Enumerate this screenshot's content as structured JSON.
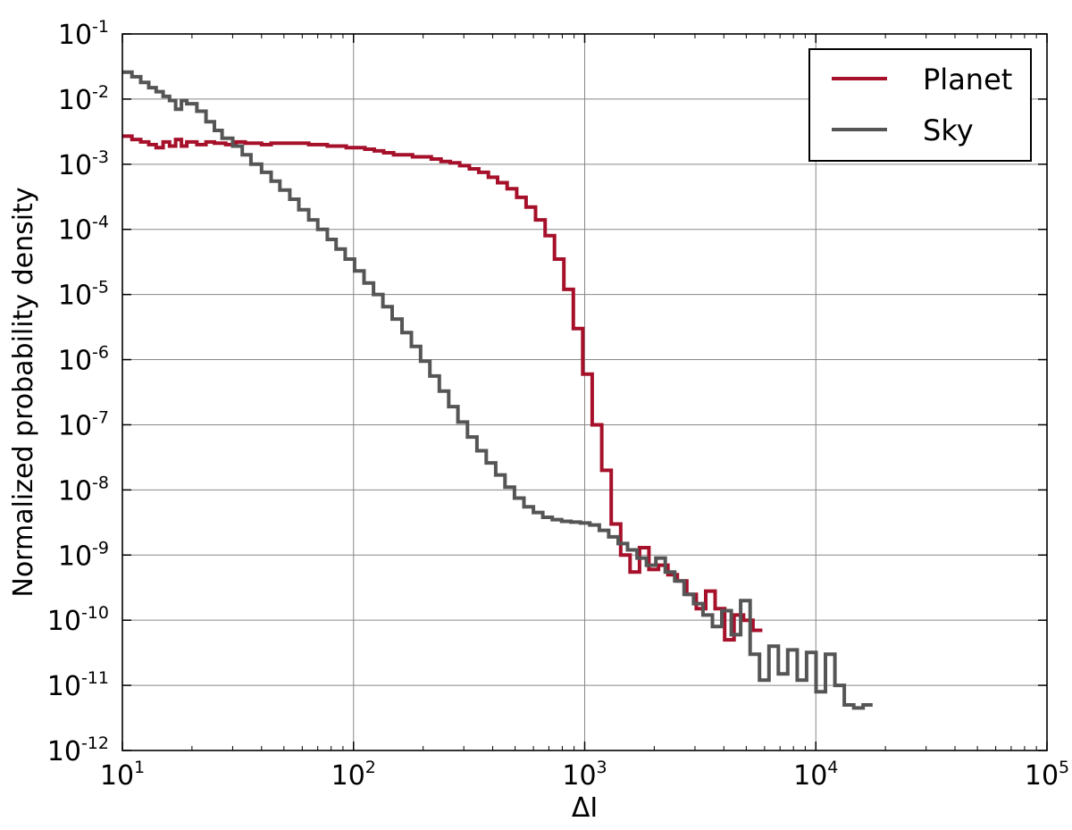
{
  "chart_data": {
    "type": "line",
    "drawstyle": "steps",
    "title": "",
    "xlabel": "ΔI",
    "ylabel": "Normalized probability density",
    "xscale": "log",
    "yscale": "log",
    "xlim": [
      10,
      100000
    ],
    "ylim": [
      1e-12,
      0.1
    ],
    "grid": true,
    "legend_position": "top-right",
    "x_tick_labels": [
      {
        "base": "10",
        "exp": "1"
      },
      {
        "base": "10",
        "exp": "2"
      },
      {
        "base": "10",
        "exp": "3"
      },
      {
        "base": "10",
        "exp": "4"
      },
      {
        "base": "10",
        "exp": "5"
      }
    ],
    "y_tick_labels": [
      {
        "base": "10",
        "exp": "-12"
      },
      {
        "base": "10",
        "exp": "-11"
      },
      {
        "base": "10",
        "exp": "-10"
      },
      {
        "base": "10",
        "exp": "-9"
      },
      {
        "base": "10",
        "exp": "-8"
      },
      {
        "base": "10",
        "exp": "-7"
      },
      {
        "base": "10",
        "exp": "-6"
      },
      {
        "base": "10",
        "exp": "-5"
      },
      {
        "base": "10",
        "exp": "-4"
      },
      {
        "base": "10",
        "exp": "-3"
      },
      {
        "base": "10",
        "exp": "-2"
      },
      {
        "base": "10",
        "exp": "-1"
      }
    ],
    "series": [
      {
        "name": "Planet",
        "color": "#a6102a",
        "points": [
          [
            10,
            0.0027
          ],
          [
            11,
            0.0024
          ],
          [
            12,
            0.0022
          ],
          [
            13,
            0.002
          ],
          [
            14,
            0.0018
          ],
          [
            15,
            0.0022
          ],
          [
            16,
            0.0019
          ],
          [
            17,
            0.0024
          ],
          [
            18,
            0.0019
          ],
          [
            19,
            0.0022
          ],
          [
            21,
            0.002
          ],
          [
            23,
            0.0022
          ],
          [
            25,
            0.0021
          ],
          [
            28,
            0.002
          ],
          [
            31,
            0.0022
          ],
          [
            34,
            0.0021
          ],
          [
            37,
            0.0021
          ],
          [
            40,
            0.002
          ],
          [
            44,
            0.0021
          ],
          [
            48,
            0.0021
          ],
          [
            53,
            0.0021
          ],
          [
            58,
            0.0021
          ],
          [
            64,
            0.002
          ],
          [
            70,
            0.002
          ],
          [
            77,
            0.0019
          ],
          [
            85,
            0.0019
          ],
          [
            93,
            0.0018
          ],
          [
            102,
            0.0018
          ],
          [
            112,
            0.0017
          ],
          [
            123,
            0.0016
          ],
          [
            135,
            0.0015
          ],
          [
            149,
            0.0014
          ],
          [
            163,
            0.0014
          ],
          [
            180,
            0.0013
          ],
          [
            198,
            0.0013
          ],
          [
            217,
            0.0012
          ],
          [
            239,
            0.0011
          ],
          [
            262,
            0.00105
          ],
          [
            288,
            0.00095
          ],
          [
            317,
            0.00085
          ],
          [
            348,
            0.00075
          ],
          [
            383,
            0.00063
          ],
          [
            420,
            0.00052
          ],
          [
            462,
            0.00042
          ],
          [
            508,
            0.00031
          ],
          [
            558,
            0.00022
          ],
          [
            613,
            0.00014
          ],
          [
            674,
            8e-05
          ],
          [
            740,
            3.5e-05
          ],
          [
            813,
            1.2e-05
          ],
          [
            893,
            3e-06
          ],
          [
            981,
            6e-07
          ],
          [
            1078,
            1e-07
          ],
          [
            1185,
            2e-08
          ],
          [
            1302,
            3e-09
          ],
          [
            1431,
            1e-09
          ],
          [
            1572,
            5.5e-10
          ],
          [
            1727,
            1.3e-09
          ],
          [
            1897,
            6e-10
          ],
          [
            2085,
            7e-10
          ],
          [
            2291,
            5e-10
          ],
          [
            2517,
            4e-10
          ],
          [
            2766,
            2.5e-10
          ],
          [
            3039,
            1.5e-10
          ],
          [
            3339,
            2.8e-10
          ],
          [
            3668,
            1.5e-10
          ],
          [
            4031,
            5e-11
          ],
          [
            4428,
            1.2e-10
          ],
          [
            4866,
            1e-10
          ],
          [
            5346,
            7e-11
          ]
        ]
      },
      {
        "name": "Sky",
        "color": "#555555",
        "points": [
          [
            10,
            0.026
          ],
          [
            11,
            0.022
          ],
          [
            12,
            0.018
          ],
          [
            13,
            0.015
          ],
          [
            14,
            0.013
          ],
          [
            15,
            0.011
          ],
          [
            16,
            0.0095
          ],
          [
            17,
            0.007
          ],
          [
            18,
            0.0095
          ],
          [
            19,
            0.0085
          ],
          [
            21,
            0.0065
          ],
          [
            23,
            0.0045
          ],
          [
            25,
            0.0033
          ],
          [
            27,
            0.0025
          ],
          [
            30,
            0.0019
          ],
          [
            33,
            0.0014
          ],
          [
            36,
            0.001
          ],
          [
            40,
            0.00075
          ],
          [
            44,
            0.00055
          ],
          [
            48,
            0.0004
          ],
          [
            53,
            0.00029
          ],
          [
            58,
            0.0002
          ],
          [
            64,
            0.00014
          ],
          [
            70,
            0.0001
          ],
          [
            77,
            7e-05
          ],
          [
            84,
            5e-05
          ],
          [
            92,
            3.5e-05
          ],
          [
            101,
            2.3e-05
          ],
          [
            111,
            1.5e-05
          ],
          [
            122,
            1e-05
          ],
          [
            134,
            6.5e-06
          ],
          [
            147,
            4.2e-06
          ],
          [
            162,
            2.6e-06
          ],
          [
            178,
            1.6e-06
          ],
          [
            195,
            9.5e-07
          ],
          [
            214,
            5.6e-07
          ],
          [
            235,
            3.3e-07
          ],
          [
            258,
            1.9e-07
          ],
          [
            283,
            1.1e-07
          ],
          [
            311,
            6.5e-08
          ],
          [
            342,
            4e-08
          ],
          [
            375,
            2.6e-08
          ],
          [
            412,
            1.7e-08
          ],
          [
            452,
            1.1e-08
          ],
          [
            497,
            7.5e-09
          ],
          [
            546,
            5.5e-09
          ],
          [
            600,
            4.5e-09
          ],
          [
            659,
            3.8e-09
          ],
          [
            724,
            3.5e-09
          ],
          [
            795,
            3.3e-09
          ],
          [
            873,
            3.2e-09
          ],
          [
            959,
            3.1e-09
          ],
          [
            1053,
            2.9e-09
          ],
          [
            1157,
            2.4e-09
          ],
          [
            1271,
            1.9e-09
          ],
          [
            1396,
            1.5e-09
          ],
          [
            1533,
            1.2e-09
          ],
          [
            1684,
            9e-10
          ],
          [
            1850,
            7e-10
          ],
          [
            2032,
            9e-10
          ],
          [
            2232,
            5.5e-10
          ],
          [
            2452,
            4e-10
          ],
          [
            2693,
            2.5e-10
          ],
          [
            2958,
            1.8e-10
          ],
          [
            3249,
            1.2e-10
          ],
          [
            3569,
            8e-11
          ],
          [
            3920,
            1.4e-10
          ],
          [
            4306,
            6e-11
          ],
          [
            4730,
            2e-10
          ],
          [
            5195,
            3e-11
          ],
          [
            5706,
            1.2e-11
          ],
          [
            6268,
            4e-11
          ],
          [
            6885,
            1.5e-11
          ],
          [
            7562,
            3.5e-11
          ],
          [
            8306,
            1.2e-11
          ],
          [
            9124,
            3.2e-11
          ],
          [
            10022,
            8e-12
          ],
          [
            11008,
            3e-11
          ],
          [
            12091,
            1e-11
          ],
          [
            13281,
            5e-12
          ],
          [
            14588,
            4.5e-12
          ],
          [
            16023,
            5e-12
          ]
        ]
      }
    ]
  }
}
